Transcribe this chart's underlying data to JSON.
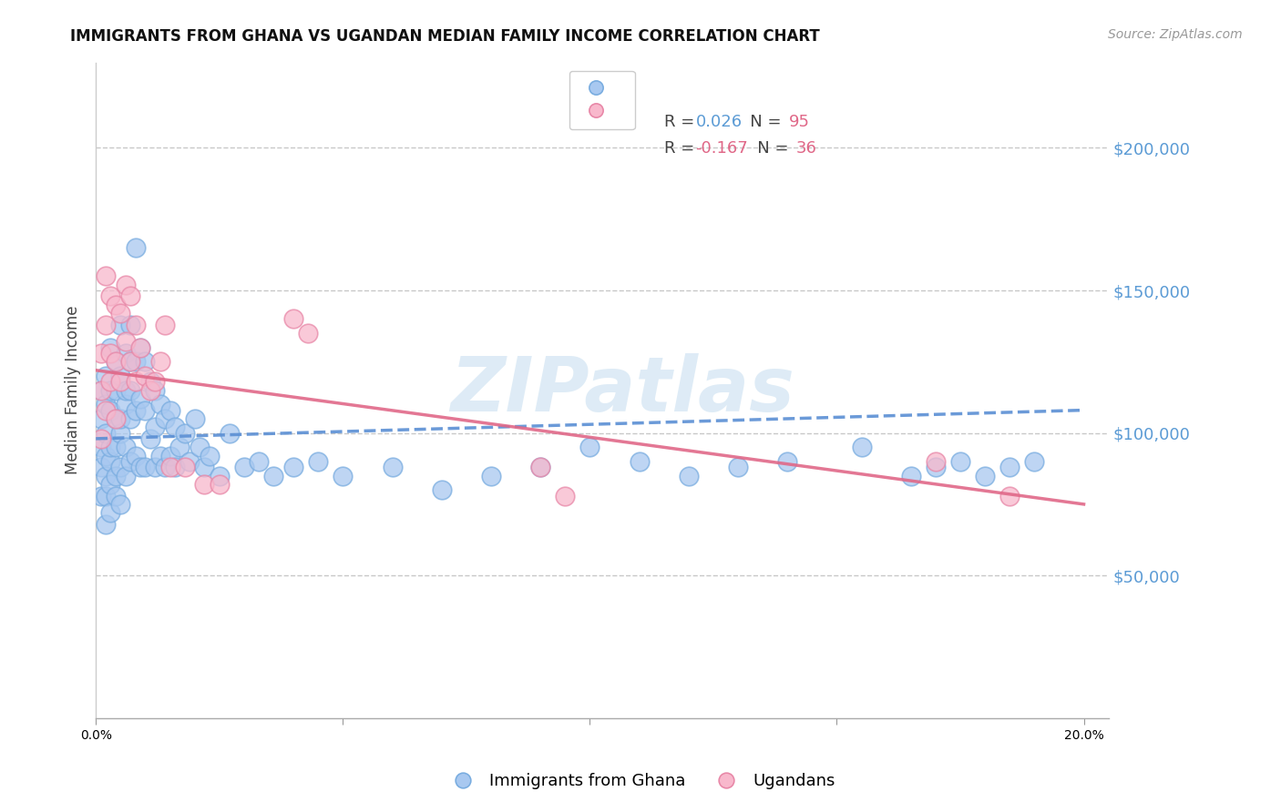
{
  "title": "IMMIGRANTS FROM GHANA VS UGANDAN MEDIAN FAMILY INCOME CORRELATION CHART",
  "source": "Source: ZipAtlas.com",
  "ylabel": "Median Family Income",
  "xlim": [
    0.0,
    0.205
  ],
  "ylim": [
    0,
    230000
  ],
  "ghana_color": "#a8c8f0",
  "ghana_edge_color": "#7aade0",
  "uganda_color": "#f8b8cc",
  "uganda_edge_color": "#e888a8",
  "ghana_line_color": "#5b8fd4",
  "uganda_line_color": "#e06888",
  "ghana_R": "0.026",
  "ghana_N": "95",
  "uganda_R": "-0.167",
  "uganda_N": "36",
  "r_color": "#5b8fd4",
  "n_color": "#e06888",
  "legend_ghana_label": "Immigrants from Ghana",
  "legend_uganda_label": "Ugandans",
  "watermark": "ZIPatlas",
  "watermark_color": "#c8dff0",
  "right_yticks": [
    50000,
    100000,
    150000,
    200000
  ],
  "right_yticklabels": [
    "$50,000",
    "$100,000",
    "$150,000",
    "$200,000"
  ],
  "ghana_scatter_x": [
    0.001,
    0.001,
    0.001,
    0.001,
    0.001,
    0.002,
    0.002,
    0.002,
    0.002,
    0.002,
    0.002,
    0.002,
    0.003,
    0.003,
    0.003,
    0.003,
    0.003,
    0.003,
    0.003,
    0.004,
    0.004,
    0.004,
    0.004,
    0.004,
    0.004,
    0.005,
    0.005,
    0.005,
    0.005,
    0.005,
    0.005,
    0.006,
    0.006,
    0.006,
    0.006,
    0.006,
    0.007,
    0.007,
    0.007,
    0.007,
    0.007,
    0.008,
    0.008,
    0.008,
    0.008,
    0.009,
    0.009,
    0.009,
    0.01,
    0.01,
    0.01,
    0.011,
    0.011,
    0.012,
    0.012,
    0.012,
    0.013,
    0.013,
    0.014,
    0.014,
    0.015,
    0.015,
    0.016,
    0.016,
    0.017,
    0.018,
    0.019,
    0.02,
    0.021,
    0.022,
    0.023,
    0.025,
    0.027,
    0.03,
    0.033,
    0.036,
    0.04,
    0.045,
    0.05,
    0.06,
    0.07,
    0.08,
    0.09,
    0.1,
    0.11,
    0.12,
    0.13,
    0.14,
    0.155,
    0.165,
    0.17,
    0.175,
    0.18,
    0.185,
    0.19
  ],
  "ghana_scatter_y": [
    95000,
    88000,
    78000,
    105000,
    115000,
    92000,
    85000,
    100000,
    110000,
    78000,
    68000,
    120000,
    130000,
    90000,
    82000,
    95000,
    108000,
    72000,
    115000,
    125000,
    95000,
    85000,
    105000,
    78000,
    115000,
    120000,
    100000,
    88000,
    75000,
    105000,
    138000,
    110000,
    95000,
    115000,
    128000,
    85000,
    115000,
    105000,
    90000,
    125000,
    138000,
    165000,
    125000,
    108000,
    92000,
    130000,
    112000,
    88000,
    125000,
    108000,
    88000,
    118000,
    98000,
    115000,
    102000,
    88000,
    110000,
    92000,
    105000,
    88000,
    108000,
    92000,
    102000,
    88000,
    95000,
    100000,
    90000,
    105000,
    95000,
    88000,
    92000,
    85000,
    100000,
    88000,
    90000,
    85000,
    88000,
    90000,
    85000,
    88000,
    80000,
    85000,
    88000,
    95000,
    90000,
    85000,
    88000,
    90000,
    95000,
    85000,
    88000,
    90000,
    85000,
    88000,
    90000
  ],
  "uganda_scatter_x": [
    0.001,
    0.001,
    0.001,
    0.002,
    0.002,
    0.002,
    0.003,
    0.003,
    0.003,
    0.004,
    0.004,
    0.004,
    0.005,
    0.005,
    0.006,
    0.006,
    0.007,
    0.007,
    0.008,
    0.008,
    0.009,
    0.01,
    0.011,
    0.012,
    0.013,
    0.014,
    0.015,
    0.018,
    0.022,
    0.025,
    0.04,
    0.043,
    0.09,
    0.095,
    0.17,
    0.185
  ],
  "uganda_scatter_y": [
    115000,
    128000,
    98000,
    155000,
    138000,
    108000,
    148000,
    128000,
    118000,
    145000,
    125000,
    105000,
    142000,
    118000,
    152000,
    132000,
    148000,
    125000,
    138000,
    118000,
    130000,
    120000,
    115000,
    118000,
    125000,
    138000,
    88000,
    88000,
    82000,
    82000,
    140000,
    135000,
    88000,
    78000,
    90000,
    78000
  ]
}
